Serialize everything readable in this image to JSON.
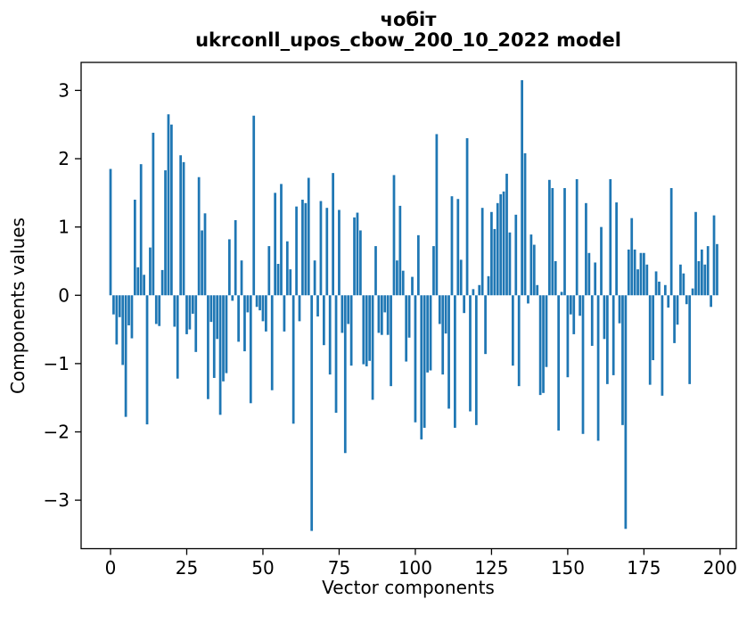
{
  "chart_data": {
    "type": "bar",
    "suptitle": "чобіт",
    "title": "ukrconll_upos_cbow_200_10_2022 model",
    "xlabel": "Vector components",
    "ylabel": "Components values",
    "x_ticks": [
      0,
      25,
      50,
      75,
      100,
      125,
      150,
      175,
      200
    ],
    "y_ticks": [
      3,
      2,
      1,
      0,
      -1,
      -2,
      -3
    ],
    "xlim": [
      -9.65,
      205.3
    ],
    "ylim": [
      -3.71,
      3.41
    ],
    "grid": false,
    "legend": "none",
    "bar_color": "#1f77b4",
    "axis_color": "#000000",
    "background_color": "#ffffff",
    "n_components": 200,
    "x_start": 0,
    "values": [
      1.85,
      -0.28,
      -0.72,
      -0.32,
      -1.02,
      -1.78,
      -0.44,
      -0.63,
      1.4,
      0.41,
      1.92,
      0.3,
      -1.89,
      0.7,
      2.38,
      -0.42,
      -0.45,
      0.37,
      1.83,
      2.65,
      2.5,
      -0.46,
      -1.22,
      2.05,
      1.95,
      -0.57,
      -0.5,
      -0.27,
      -0.83,
      1.73,
      0.95,
      1.2,
      -1.52,
      -0.39,
      -1.21,
      -0.64,
      -1.75,
      -1.26,
      -1.14,
      0.82,
      -0.08,
      1.1,
      -0.68,
      0.51,
      -0.82,
      -0.25,
      -1.58,
      2.63,
      -0.17,
      -0.22,
      -0.38,
      -0.53,
      0.72,
      -1.39,
      1.5,
      0.46,
      1.63,
      -0.53,
      0.79,
      0.38,
      -1.88,
      1.3,
      -0.38,
      1.4,
      1.35,
      1.72,
      -3.45,
      0.51,
      -0.31,
      1.38,
      -0.73,
      1.28,
      -1.16,
      1.79,
      -1.72,
      1.25,
      -0.55,
      -2.31,
      -0.42,
      -1.03,
      1.14,
      1.21,
      0.95,
      -1.01,
      -1.04,
      -0.96,
      -1.53,
      0.72,
      -0.55,
      -0.58,
      -0.25,
      -0.58,
      -1.33,
      1.76,
      0.51,
      1.31,
      0.36,
      -0.97,
      -0.62,
      0.27,
      -1.86,
      0.88,
      -2.11,
      -1.94,
      -1.13,
      -1.1,
      0.72,
      2.36,
      -0.42,
      -1.16,
      -0.56,
      -1.66,
      1.45,
      -1.94,
      1.41,
      0.52,
      -0.26,
      2.3,
      -1.7,
      0.09,
      -1.9,
      0.15,
      1.28,
      -0.86,
      0.28,
      1.22,
      0.97,
      1.35,
      1.48,
      1.52,
      1.78,
      0.92,
      -1.03,
      1.18,
      -1.33,
      3.15,
      2.08,
      -0.12,
      0.89,
      0.74,
      0.15,
      -1.46,
      -1.43,
      -1.05,
      1.69,
      1.57,
      0.5,
      -1.98,
      0.05,
      1.57,
      -1.2,
      -0.28,
      -0.57,
      1.7,
      -0.3,
      -2.03,
      1.35,
      0.62,
      -0.74,
      0.48,
      -2.13,
      1.0,
      -0.64,
      -1.3,
      1.7,
      -1.17,
      1.36,
      -0.41,
      -1.9,
      -3.42,
      0.67,
      1.13,
      0.67,
      0.38,
      0.62,
      0.62,
      0.45,
      -1.31,
      -0.95,
      0.35,
      0.2,
      -1.47,
      0.15,
      -0.18,
      1.57,
      -0.7,
      -0.43,
      0.45,
      0.32,
      -0.13,
      -1.3,
      0.1,
      1.22,
      0.5,
      0.67,
      0.45,
      0.72,
      -0.17,
      1.17,
      0.75
    ]
  }
}
